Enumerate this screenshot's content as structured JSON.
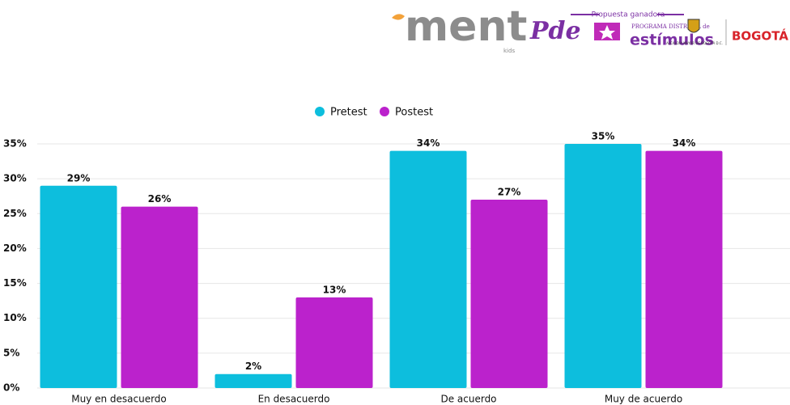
{
  "header": {
    "brand": "ment",
    "brand_sub": "kids",
    "program_logo": "Pde",
    "tagline": "Propuesta ganadora",
    "program_line": "PROGRAMA DISTRITAL de",
    "program_name": "estímulos",
    "city_seal": "ALCALDÍA MAYOR DE BOGOTÁ D.C.",
    "city": "BOGOTÁ"
  },
  "chart_data": {
    "type": "bar",
    "categories": [
      "Muy en desacuerdo",
      "En desacuerdo",
      "De acuerdo",
      "Muy de acuerdo"
    ],
    "series": [
      {
        "name": "Pretest",
        "color": "#0dbedd",
        "values": [
          29,
          2,
          34,
          35
        ],
        "value_labels": [
          "29%",
          "2%",
          "34%",
          "35%"
        ]
      },
      {
        "name": "Postest",
        "color": "#bb22cc",
        "values": [
          26,
          13,
          27,
          34
        ],
        "value_labels": [
          "26%",
          "13%",
          "27%",
          "34%"
        ]
      }
    ],
    "ylim": [
      0,
      35
    ],
    "yticks": [
      {
        "value": 0,
        "label": "0%"
      },
      {
        "value": 5,
        "label": "5%"
      },
      {
        "value": 10,
        "label": "10%"
      },
      {
        "value": 15,
        "label": "15%"
      },
      {
        "value": 20,
        "label": "20%"
      },
      {
        "value": 25,
        "label": "25%"
      },
      {
        "value": 30,
        "label": "30%"
      },
      {
        "value": 35,
        "label": "35%"
      }
    ],
    "grid": true,
    "legend": "top"
  }
}
